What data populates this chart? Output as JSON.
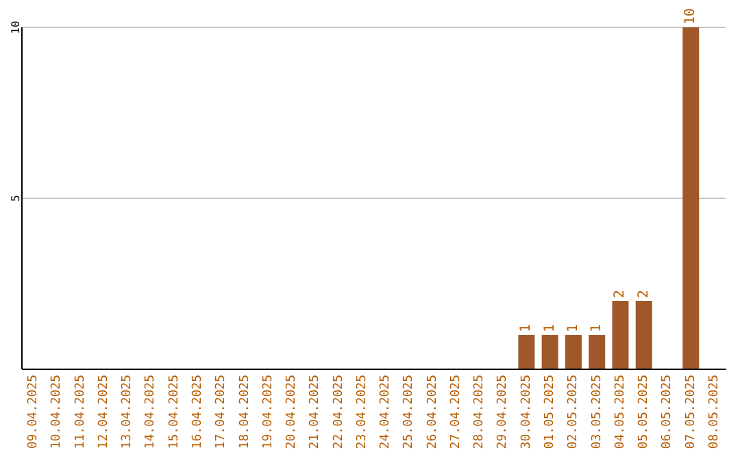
{
  "chart_data": {
    "type": "bar",
    "categories": [
      "09.04.2025",
      "10.04.2025",
      "11.04.2025",
      "12.04.2025",
      "13.04.2025",
      "14.04.2025",
      "15.04.2025",
      "16.04.2025",
      "17.04.2025",
      "18.04.2025",
      "19.04.2025",
      "20.04.2025",
      "21.04.2025",
      "22.04.2025",
      "23.04.2025",
      "24.04.2025",
      "25.04.2025",
      "26.04.2025",
      "27.04.2025",
      "28.04.2025",
      "29.04.2025",
      "30.04.2025",
      "01.05.2025",
      "02.05.2025",
      "03.05.2025",
      "04.05.2025",
      "05.05.2025",
      "06.05.2025",
      "07.05.2025",
      "08.05.2025"
    ],
    "values": [
      0,
      0,
      0,
      0,
      0,
      0,
      0,
      0,
      0,
      0,
      0,
      0,
      0,
      0,
      0,
      0,
      0,
      0,
      0,
      0,
      0,
      1,
      1,
      1,
      1,
      2,
      2,
      0,
      10,
      0
    ],
    "value_labels": [
      null,
      null,
      null,
      null,
      null,
      null,
      null,
      null,
      null,
      null,
      null,
      null,
      null,
      null,
      null,
      null,
      null,
      null,
      null,
      null,
      null,
      "1",
      "1",
      "1",
      "1",
      "2",
      "2",
      null,
      "10",
      null
    ],
    "color": "#a0582a",
    "ylim": [
      0,
      10
    ],
    "yticks": [
      5,
      10
    ],
    "grid": "y"
  }
}
